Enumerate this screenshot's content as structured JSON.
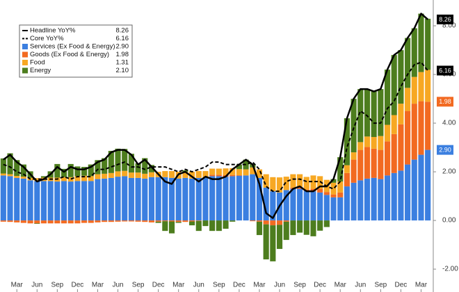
{
  "chart_data": {
    "type": "bar",
    "categories": [
      null,
      null,
      "Mar",
      null,
      null,
      "Jun",
      null,
      null,
      "Sep",
      null,
      null,
      "Dec",
      null,
      null,
      "Mar",
      null,
      null,
      "Jun",
      null,
      null,
      "Sep",
      null,
      null,
      "Dec",
      null,
      null,
      "Mar",
      null,
      null,
      "Jun",
      null,
      null,
      "Sep",
      null,
      null,
      "Dec",
      null,
      null,
      "Mar",
      null,
      null,
      "Jun",
      null,
      null,
      "Sep",
      null,
      null,
      "Dec",
      null,
      null,
      "Mar",
      null,
      null,
      "Jun",
      null,
      null,
      "Sep",
      null,
      null,
      "Dec",
      null,
      null,
      "Mar",
      null
    ],
    "series": [
      {
        "name": "Headline YoY%",
        "type": "line",
        "color": "#000000",
        "dash": false,
        "tag": true,
        "values": [
          2.5,
          2.7,
          2.4,
          2.2,
          1.9,
          1.6,
          1.7,
          1.9,
          2.2,
          2.0,
          2.2,
          2.1,
          2.1,
          2.2,
          2.4,
          2.5,
          2.8,
          2.9,
          2.9,
          2.7,
          2.3,
          2.5,
          2.2,
          1.9,
          1.6,
          1.5,
          1.9,
          2.0,
          1.8,
          1.6,
          1.8,
          1.7,
          1.7,
          1.8,
          2.1,
          2.3,
          2.5,
          2.3,
          1.5,
          0.3,
          0.1,
          0.6,
          1.0,
          1.3,
          1.4,
          1.2,
          1.2,
          1.4,
          1.4,
          1.7,
          2.6,
          4.2,
          5.0,
          5.4,
          5.4,
          5.3,
          5.4,
          6.2,
          6.8,
          7.0,
          7.5,
          7.9,
          8.5,
          8.26
        ],
        "value_labels": [
          null,
          null,
          null,
          null,
          null,
          null,
          null,
          null,
          null,
          null,
          null,
          null,
          null,
          null,
          null,
          null,
          null,
          null,
          null,
          null,
          null,
          null,
          null,
          null,
          null,
          null,
          null,
          null,
          null,
          null,
          null,
          null,
          null,
          null,
          null,
          null,
          null,
          null,
          null,
          null,
          null,
          null,
          null,
          null,
          null,
          null,
          null,
          null,
          null,
          null,
          null,
          null,
          null,
          null,
          null,
          null,
          null,
          null,
          null,
          null,
          null,
          null,
          null,
          "8.26"
        ]
      },
      {
        "name": "Core YoY%",
        "type": "line",
        "color": "#000000",
        "dash": true,
        "tag": true,
        "values": [
          2.3,
          2.2,
          2.0,
          1.9,
          1.7,
          1.7,
          1.7,
          1.7,
          1.7,
          1.8,
          1.7,
          1.8,
          1.8,
          1.8,
          2.1,
          2.1,
          2.2,
          2.3,
          2.4,
          2.2,
          2.2,
          2.1,
          2.2,
          2.2,
          2.2,
          2.1,
          2.0,
          2.1,
          2.0,
          2.1,
          2.2,
          2.4,
          2.4,
          2.3,
          2.3,
          2.3,
          2.3,
          2.4,
          2.1,
          1.4,
          1.2,
          1.2,
          1.6,
          1.7,
          1.7,
          1.6,
          1.6,
          1.6,
          1.4,
          1.3,
          1.6,
          3.0,
          3.8,
          4.5,
          4.3,
          4.0,
          4.0,
          4.6,
          4.9,
          5.5,
          6.0,
          6.4,
          6.5,
          6.16
        ],
        "value_labels": [
          null,
          null,
          null,
          null,
          null,
          null,
          null,
          null,
          null,
          null,
          null,
          null,
          null,
          null,
          null,
          null,
          null,
          null,
          null,
          null,
          null,
          null,
          null,
          null,
          null,
          null,
          null,
          null,
          null,
          null,
          null,
          null,
          null,
          null,
          null,
          null,
          null,
          null,
          null,
          null,
          null,
          null,
          null,
          null,
          null,
          null,
          null,
          null,
          null,
          null,
          null,
          null,
          null,
          null,
          null,
          null,
          null,
          null,
          null,
          null,
          null,
          null,
          null,
          "6.16"
        ]
      },
      {
        "name": "Services (Ex Food & Energy)",
        "type": "bar",
        "color": "#3b7fe0",
        "tag": true,
        "values": [
          1.85,
          1.82,
          1.75,
          1.72,
          1.65,
          1.62,
          1.62,
          1.62,
          1.6,
          1.62,
          1.6,
          1.62,
          1.62,
          1.62,
          1.7,
          1.72,
          1.75,
          1.8,
          1.82,
          1.75,
          1.75,
          1.72,
          1.78,
          1.78,
          1.78,
          1.75,
          1.72,
          1.75,
          1.72,
          1.75,
          1.78,
          1.82,
          1.82,
          1.8,
          1.82,
          1.84,
          1.85,
          1.9,
          1.75,
          1.35,
          1.2,
          1.15,
          1.25,
          1.3,
          1.3,
          1.22,
          1.2,
          1.15,
          1.05,
          0.95,
          0.95,
          1.4,
          1.55,
          1.65,
          1.72,
          1.75,
          1.7,
          1.85,
          1.95,
          2.05,
          2.3,
          2.5,
          2.7,
          2.9
        ],
        "value_labels": [
          null,
          null,
          null,
          null,
          null,
          null,
          null,
          null,
          null,
          null,
          null,
          null,
          null,
          null,
          null,
          null,
          null,
          null,
          null,
          null,
          null,
          null,
          null,
          null,
          null,
          null,
          null,
          null,
          null,
          null,
          null,
          null,
          null,
          null,
          null,
          null,
          null,
          null,
          null,
          null,
          null,
          null,
          null,
          null,
          null,
          null,
          null,
          null,
          null,
          null,
          null,
          null,
          null,
          null,
          null,
          null,
          null,
          null,
          null,
          null,
          null,
          null,
          null,
          "2.90"
        ]
      },
      {
        "name": "Goods (Ex Food & Energy)",
        "type": "bar",
        "color": "#f26a21",
        "tag": true,
        "values": [
          -0.05,
          -0.06,
          -0.08,
          -0.1,
          -0.12,
          -0.12,
          -0.12,
          -0.12,
          -0.12,
          -0.12,
          -0.12,
          -0.12,
          -0.1,
          -0.1,
          -0.08,
          -0.06,
          -0.06,
          -0.05,
          -0.04,
          -0.04,
          -0.05,
          -0.06,
          -0.08,
          -0.05,
          -0.03,
          -0.04,
          -0.06,
          -0.06,
          -0.04,
          -0.02,
          0.0,
          0.06,
          0.06,
          0.06,
          0.05,
          0.02,
          0.0,
          -0.03,
          -0.05,
          -0.16,
          -0.2,
          -0.18,
          -0.05,
          0.05,
          0.08,
          0.05,
          0.1,
          0.15,
          0.12,
          0.12,
          0.2,
          0.55,
          0.95,
          1.25,
          1.3,
          1.2,
          1.2,
          1.4,
          1.6,
          1.9,
          2.2,
          2.3,
          2.2,
          1.98
        ],
        "value_labels": [
          null,
          null,
          null,
          null,
          null,
          null,
          null,
          null,
          null,
          null,
          null,
          null,
          null,
          null,
          null,
          null,
          null,
          null,
          null,
          null,
          null,
          null,
          null,
          null,
          null,
          null,
          null,
          null,
          null,
          null,
          null,
          null,
          null,
          null,
          null,
          null,
          null,
          null,
          null,
          null,
          null,
          null,
          null,
          null,
          null,
          null,
          null,
          null,
          null,
          null,
          null,
          null,
          null,
          null,
          null,
          null,
          null,
          null,
          null,
          null,
          null,
          null,
          null,
          "1.98"
        ]
      },
      {
        "name": "Food",
        "type": "bar",
        "color": "#f7a823",
        "tag": false,
        "values": [
          0.08,
          0.08,
          0.08,
          0.08,
          0.1,
          0.12,
          0.14,
          0.14,
          0.16,
          0.16,
          0.18,
          0.2,
          0.22,
          0.2,
          0.2,
          0.2,
          0.2,
          0.22,
          0.22,
          0.22,
          0.22,
          0.2,
          0.2,
          0.22,
          0.25,
          0.28,
          0.28,
          0.25,
          0.28,
          0.28,
          0.25,
          0.25,
          0.25,
          0.28,
          0.28,
          0.25,
          0.25,
          0.28,
          0.35,
          0.55,
          0.58,
          0.62,
          0.55,
          0.55,
          0.52,
          0.52,
          0.55,
          0.52,
          0.5,
          0.48,
          0.45,
          0.32,
          0.3,
          0.32,
          0.43,
          0.48,
          0.57,
          0.68,
          0.78,
          0.85,
          0.95,
          1.1,
          1.2,
          1.31
        ],
        "value_labels": [
          null,
          null,
          null,
          null,
          null,
          null,
          null,
          null,
          null,
          null,
          null,
          null,
          null,
          null,
          null,
          null,
          null,
          null,
          null,
          null,
          null,
          null,
          null,
          null,
          null,
          null,
          null,
          null,
          null,
          null,
          null,
          null,
          null,
          null,
          null,
          null,
          null,
          null,
          null,
          null,
          null,
          null,
          null,
          null,
          null,
          null,
          null,
          null,
          null,
          null,
          null,
          null,
          null,
          null,
          null,
          null,
          null,
          null,
          null,
          null,
          null,
          null,
          null,
          "1.31"
        ]
      },
      {
        "name": "Energy",
        "type": "bar",
        "color": "#4d7d1e",
        "tag": false,
        "values": [
          0.62,
          0.86,
          0.65,
          0.5,
          0.27,
          -0.02,
          0.06,
          0.26,
          0.56,
          0.34,
          0.54,
          0.4,
          0.36,
          0.48,
          0.58,
          0.64,
          0.91,
          0.93,
          0.9,
          0.77,
          0.38,
          0.64,
          0.3,
          -0.05,
          -0.4,
          -0.49,
          -0.04,
          0.06,
          -0.16,
          -0.41,
          -0.23,
          -0.43,
          -0.43,
          -0.34,
          -0.05,
          0.19,
          0.4,
          0.15,
          -0.55,
          -1.44,
          -1.48,
          -0.99,
          -0.75,
          -0.6,
          -0.5,
          -0.59,
          -0.65,
          -0.42,
          -0.27,
          0.15,
          1.0,
          1.93,
          2.2,
          2.18,
          1.95,
          1.87,
          1.93,
          2.27,
          2.47,
          2.2,
          2.05,
          2.0,
          2.4,
          2.1
        ],
        "value_labels": [
          null,
          null,
          null,
          null,
          null,
          null,
          null,
          null,
          null,
          null,
          null,
          null,
          null,
          null,
          null,
          null,
          null,
          null,
          null,
          null,
          null,
          null,
          null,
          null,
          null,
          null,
          null,
          null,
          null,
          null,
          null,
          null,
          null,
          null,
          null,
          null,
          null,
          null,
          null,
          null,
          null,
          null,
          null,
          null,
          null,
          null,
          null,
          null,
          null,
          null,
          null,
          null,
          null,
          null,
          null,
          null,
          null,
          null,
          null,
          null,
          null,
          null,
          null,
          "2.10"
        ]
      }
    ],
    "ylim": [
      -2.94,
      9.06
    ],
    "yticks": [
      {
        "value": -2,
        "label": "-2.00"
      },
      {
        "value": 0,
        "label": "0.00"
      },
      {
        "value": 2,
        "label": "2.00"
      },
      {
        "value": 4,
        "label": "4.00"
      },
      {
        "value": 6,
        "label": "6.00"
      },
      {
        "value": 8,
        "label": "8.00"
      }
    ],
    "grid": false
  }
}
